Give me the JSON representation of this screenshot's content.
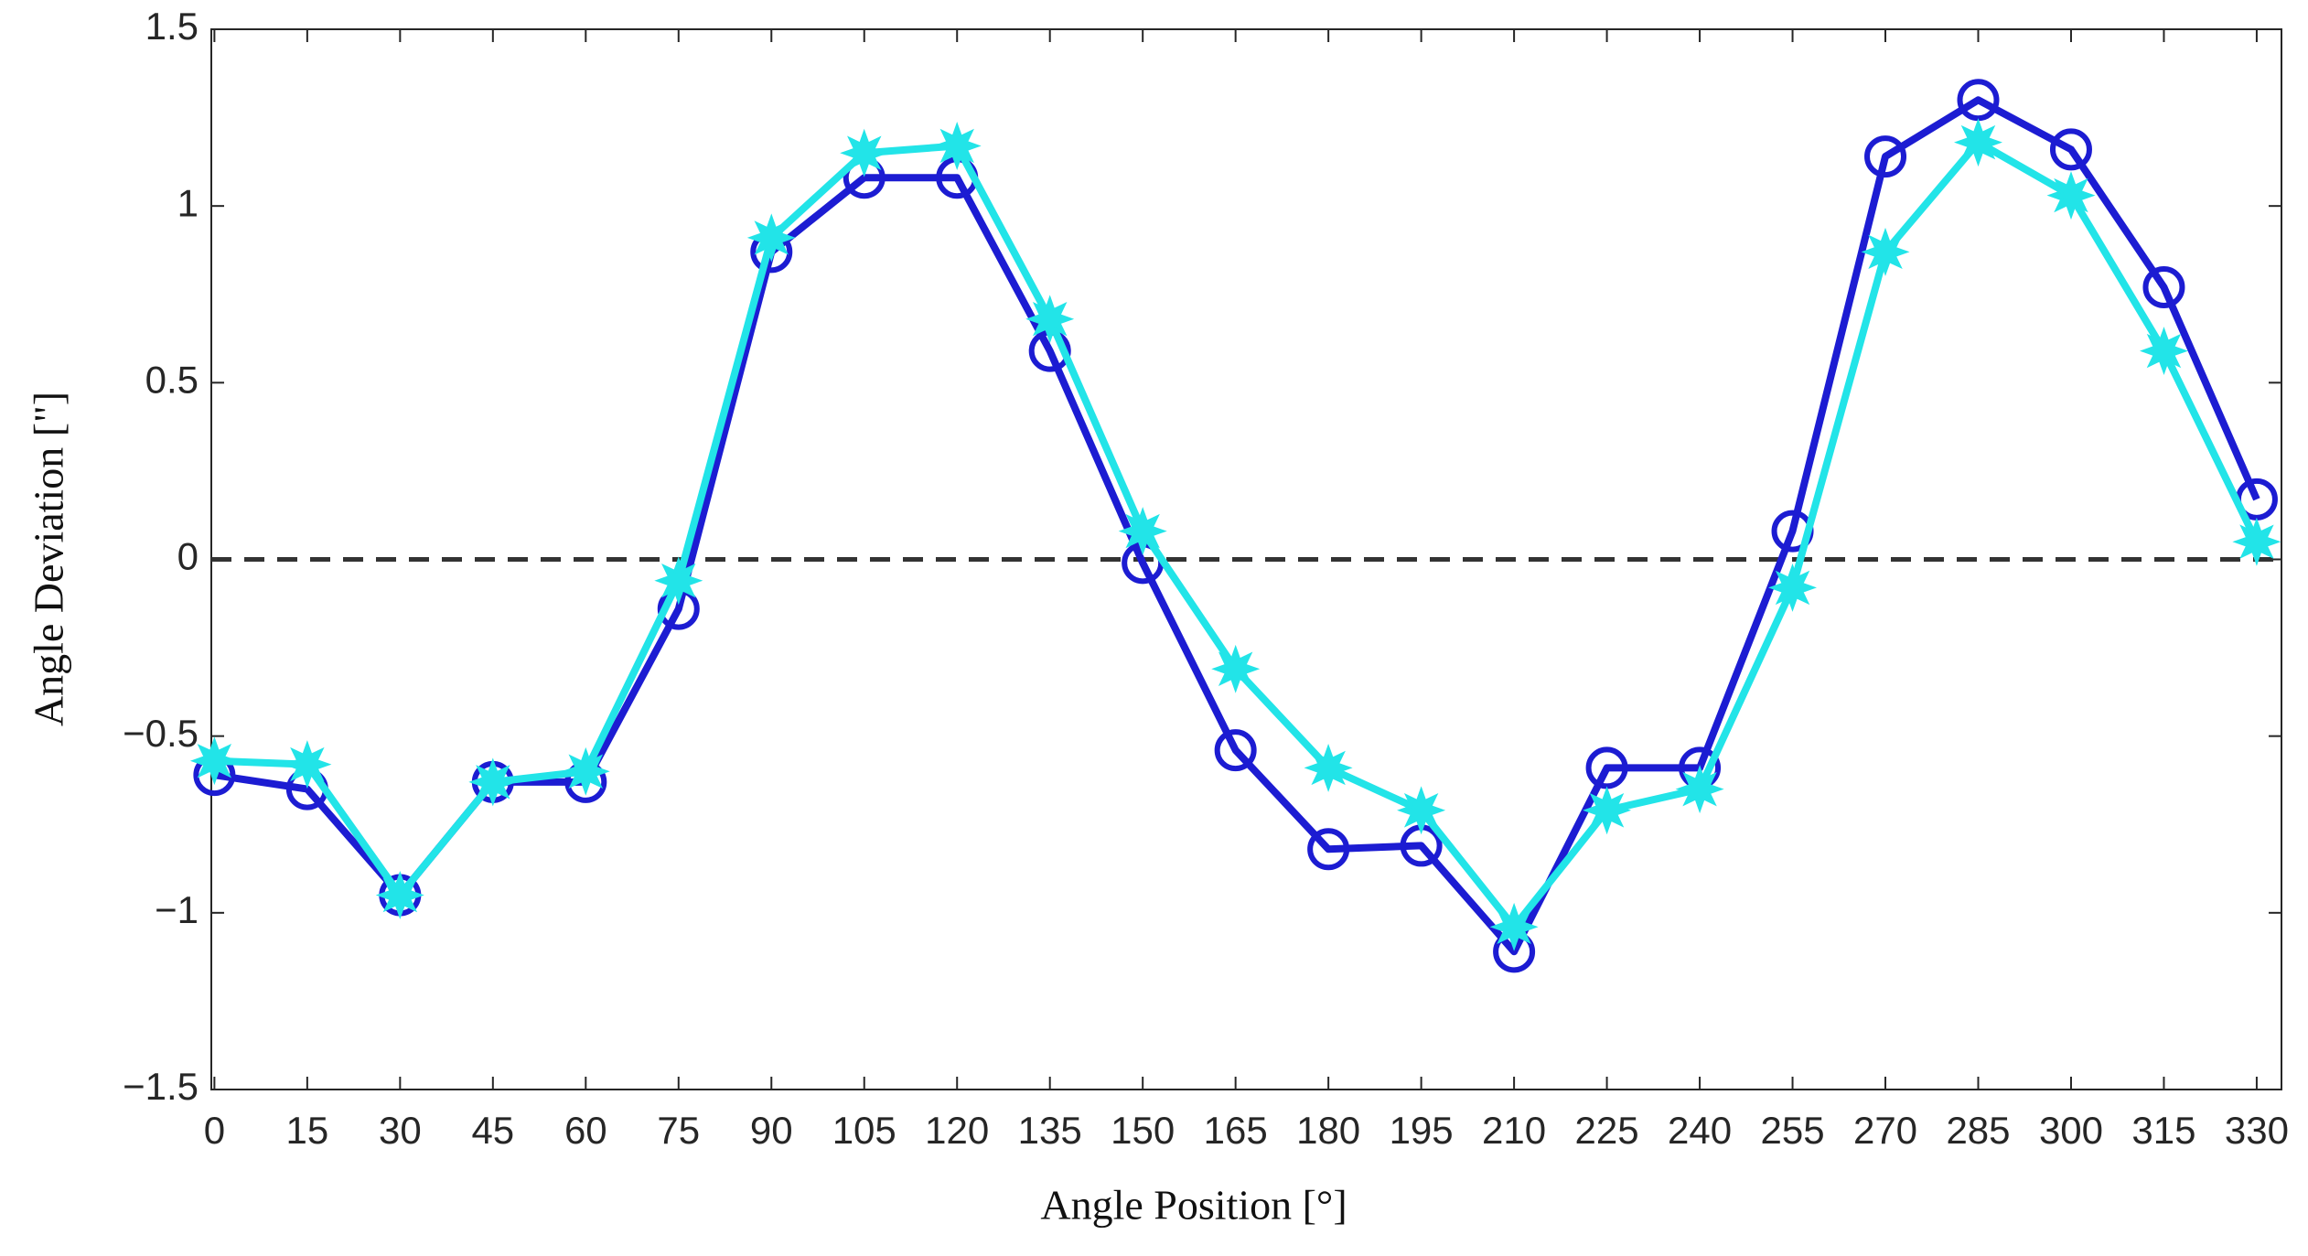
{
  "chart_data": {
    "type": "line",
    "xlabel": "Angle Position [°]",
    "ylabel": "Angle Deviation [\"]",
    "x": [
      0,
      15,
      30,
      45,
      60,
      75,
      90,
      105,
      120,
      135,
      150,
      165,
      180,
      195,
      210,
      225,
      240,
      255,
      270,
      285,
      300,
      315,
      330
    ],
    "series": [
      {
        "color": "#1c1cd2",
        "marker": "circle",
        "values": [
          -0.61,
          -0.65,
          -0.95,
          -0.63,
          -0.63,
          -0.14,
          0.87,
          1.08,
          1.08,
          0.59,
          -0.01,
          -0.54,
          -0.82,
          -0.81,
          -1.11,
          -0.59,
          -0.59,
          0.08,
          1.14,
          1.3,
          1.16,
          0.77,
          0.17
        ]
      },
      {
        "color": "#22e4e8",
        "marker": "star",
        "values": [
          -0.57,
          -0.58,
          -0.95,
          -0.63,
          -0.6,
          -0.06,
          0.91,
          1.15,
          1.17,
          0.68,
          0.08,
          -0.31,
          -0.59,
          -0.71,
          -1.04,
          -0.71,
          -0.65,
          -0.08,
          0.87,
          1.18,
          1.03,
          0.59,
          0.05
        ]
      }
    ],
    "reference_line": 0,
    "xlim": [
      -0.5,
      334
    ],
    "xticks": [
      0,
      15,
      30,
      45,
      60,
      75,
      90,
      105,
      120,
      135,
      150,
      165,
      180,
      195,
      210,
      225,
      240,
      255,
      270,
      285,
      300,
      315,
      330
    ],
    "ylim": [
      -1.5,
      1.5
    ],
    "yticks": [
      {
        "value": -1.5,
        "label": "−1.5"
      },
      {
        "value": -1,
        "label": "−1"
      },
      {
        "value": -0.5,
        "label": "−0.5"
      },
      0,
      0.5,
      1,
      1.5
    ],
    "grid": false
  }
}
